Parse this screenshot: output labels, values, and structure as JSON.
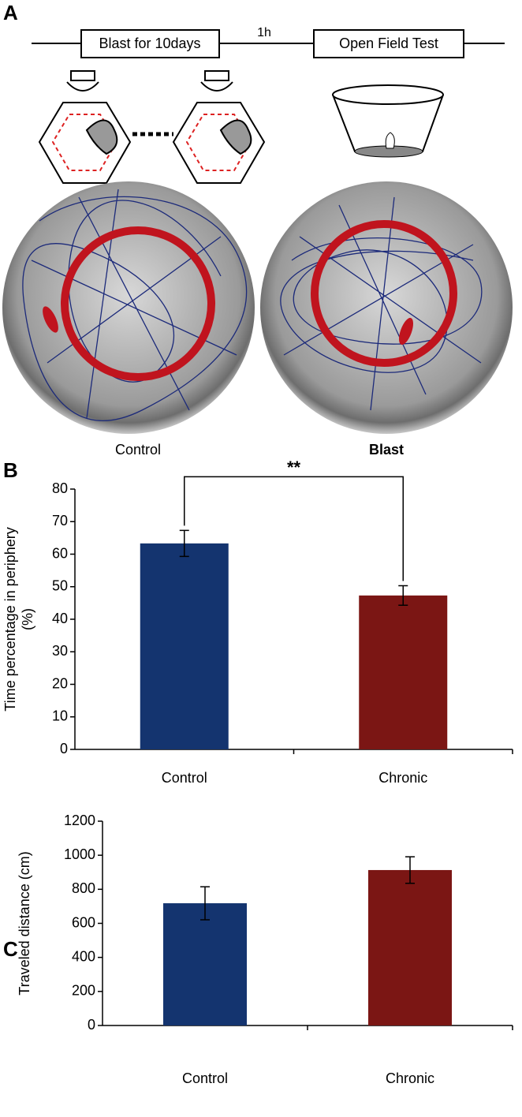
{
  "diagram": {
    "panel_label": "A",
    "step_1": "Blast for 10days",
    "interval": "1h",
    "step_2": "Open Field Test",
    "arena_left": "Control",
    "arena_right": "Blast"
  },
  "chart_data": [
    {
      "type": "bar",
      "panel_label": "B",
      "ylabel_lines": [
        "Time percentage in periphery",
        "(%)"
      ],
      "categories": [
        "Control",
        "Chronic"
      ],
      "values": [
        63.3,
        47.3
      ],
      "errors": [
        4.0,
        3.0
      ],
      "colors": [
        "#14346f",
        "#7b1614"
      ],
      "ylim": [
        0,
        80
      ],
      "yticks": [
        0,
        10,
        20,
        30,
        40,
        50,
        60,
        70,
        80
      ],
      "annotation": "**"
    },
    {
      "type": "bar",
      "panel_label": "C",
      "ylabel_lines": [
        "Traveled distance (cm)"
      ],
      "categories": [
        "Control",
        "Chronic"
      ],
      "values": [
        718,
        913
      ],
      "errors": [
        97,
        78
      ],
      "colors": [
        "#14346f",
        "#7b1614"
      ],
      "ylim": [
        0,
        1200
      ],
      "yticks": [
        0,
        200,
        400,
        600,
        800,
        1000,
        1200
      ]
    }
  ]
}
